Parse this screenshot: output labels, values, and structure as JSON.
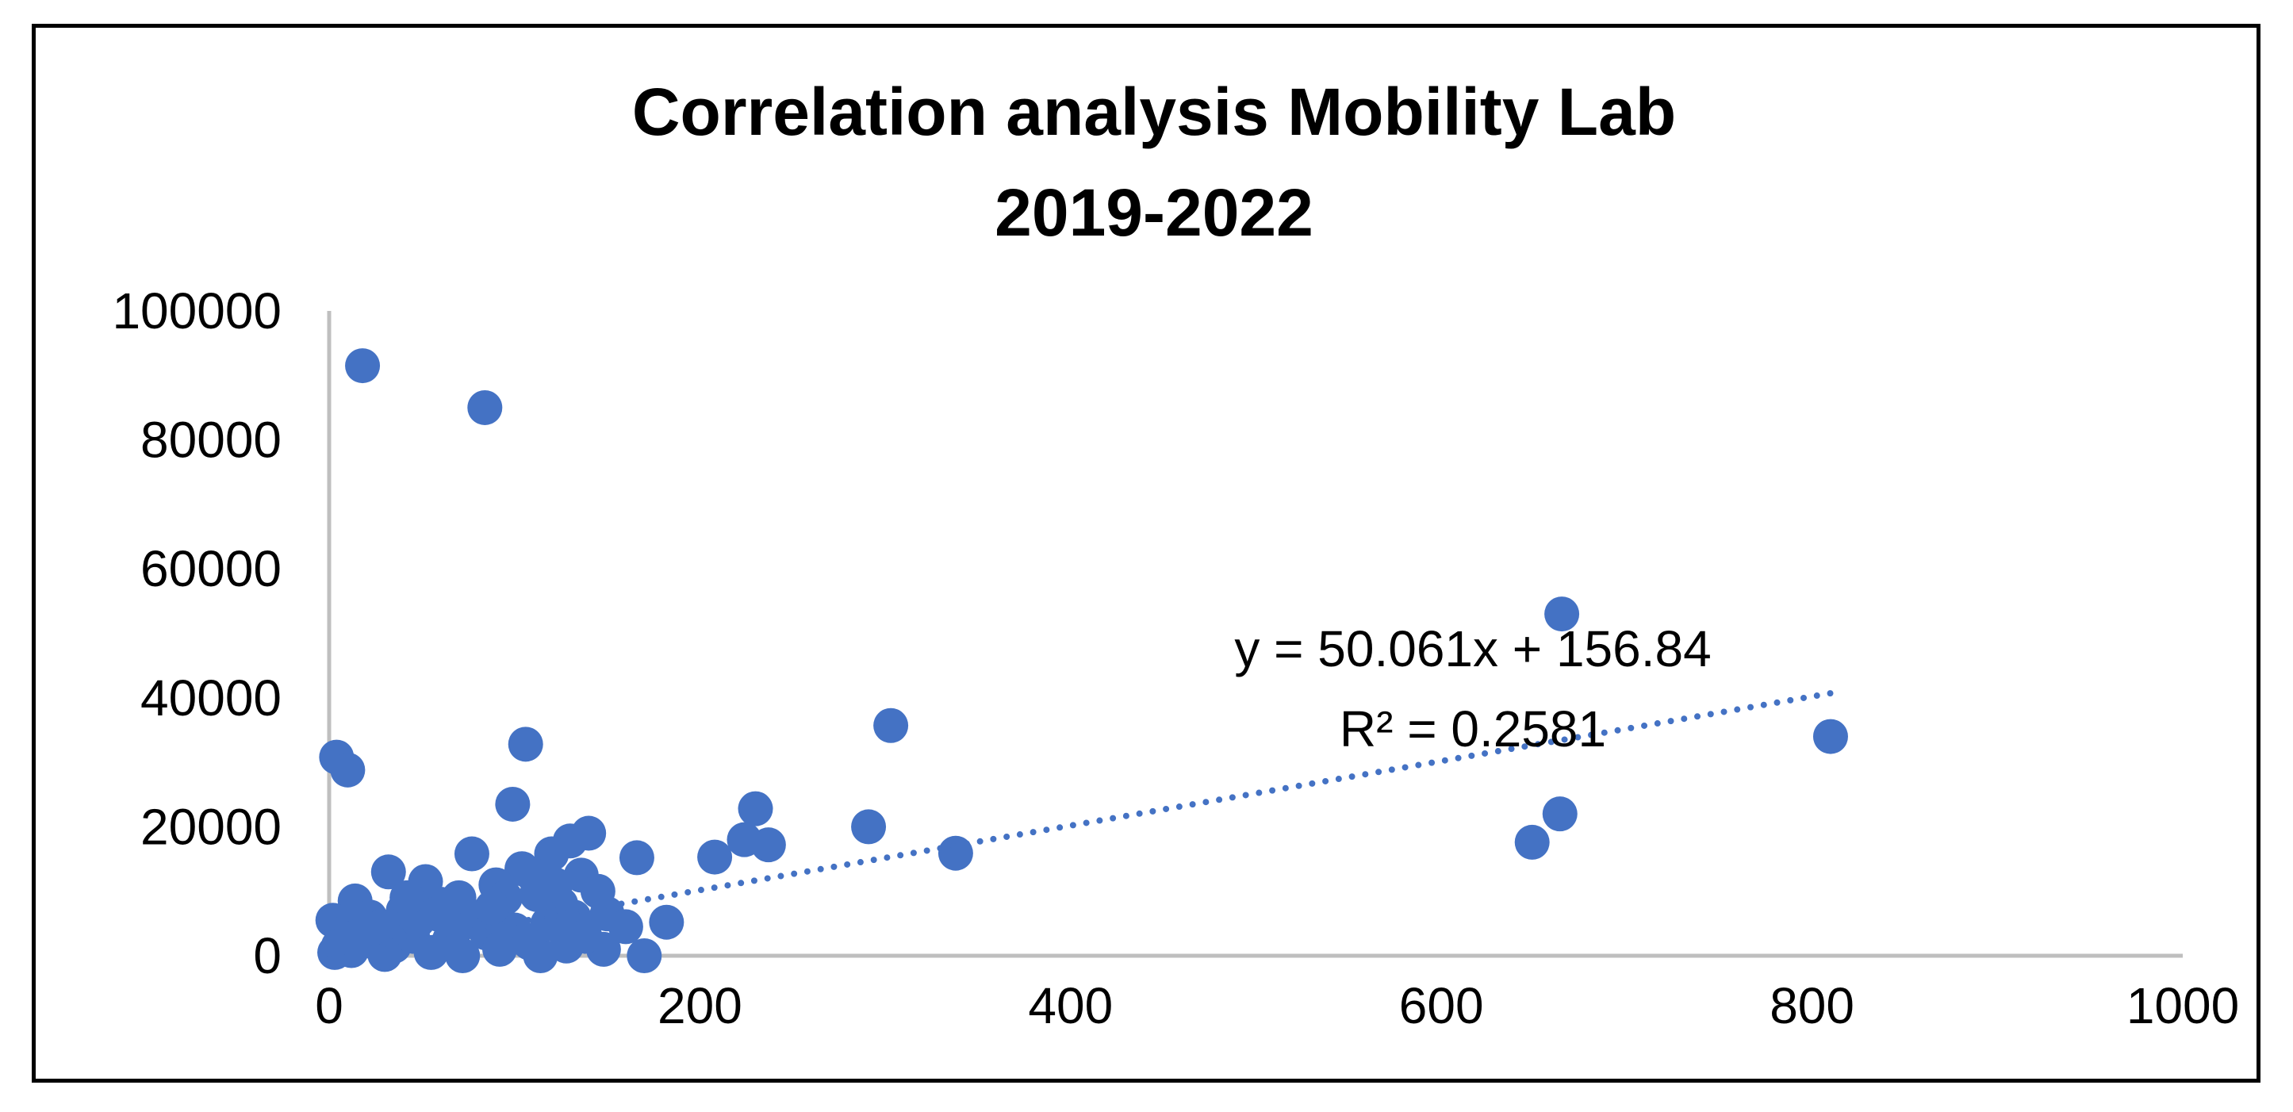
{
  "chart_data": {
    "type": "scatter",
    "title": "Correlation  analysis Mobility Lab",
    "subtitle": "2019-2022",
    "xlabel": "",
    "ylabel": "",
    "xlim": [
      0,
      1000
    ],
    "ylim": [
      0,
      100000
    ],
    "x_ticks": [
      "0",
      "200",
      "400",
      "600",
      "800",
      "1000"
    ],
    "y_ticks": [
      "0",
      "20000",
      "40000",
      "60000",
      "80000",
      "100000"
    ],
    "grid": false,
    "legend": "none",
    "marker_color": "#4472C4",
    "trendline": {
      "type": "linear",
      "slope": 50.061,
      "intercept": 156.84,
      "x_range": [
        0,
        810
      ],
      "equation_label": "y = 50.061x + 156.84",
      "r2_label": "R² = 0.2581"
    },
    "points": [
      [
        18,
        91500
      ],
      [
        84,
        85000
      ],
      [
        665,
        53000
      ],
      [
        303,
        35700
      ],
      [
        4,
        30800
      ],
      [
        10,
        28800
      ],
      [
        106,
        32800
      ],
      [
        810,
        34000
      ],
      [
        99,
        23500
      ],
      [
        230,
        22800
      ],
      [
        664,
        22000
      ],
      [
        291,
        20000
      ],
      [
        649,
        17600
      ],
      [
        237,
        17200
      ],
      [
        224,
        18000
      ],
      [
        338,
        15900
      ],
      [
        208,
        15300
      ],
      [
        166,
        15200
      ],
      [
        140,
        19000
      ],
      [
        130,
        17800
      ],
      [
        120,
        15800
      ],
      [
        77,
        15800
      ],
      [
        32,
        13000
      ],
      [
        52,
        11500
      ],
      [
        14,
        8500
      ],
      [
        110,
        12500
      ],
      [
        104,
        13500
      ],
      [
        136,
        12500
      ],
      [
        145,
        10000
      ],
      [
        90,
        11000
      ],
      [
        70,
        9000
      ],
      [
        182,
        5200
      ],
      [
        170,
        0
      ],
      [
        148,
        1000
      ],
      [
        114,
        0
      ],
      [
        2,
        5500
      ],
      [
        8,
        3500
      ],
      [
        22,
        6000
      ],
      [
        40,
        7000
      ],
      [
        60,
        8000
      ],
      [
        80,
        6000
      ],
      [
        95,
        9000
      ],
      [
        100,
        4000
      ],
      [
        125,
        8000
      ],
      [
        150,
        6500
      ],
      [
        160,
        4500
      ],
      [
        5,
        1500
      ],
      [
        12,
        800
      ],
      [
        25,
        2000
      ],
      [
        35,
        1500
      ],
      [
        45,
        3000
      ],
      [
        55,
        500
      ],
      [
        65,
        2500
      ],
      [
        72,
        0
      ],
      [
        85,
        3500
      ],
      [
        92,
        1000
      ],
      [
        108,
        2000
      ],
      [
        118,
        5000
      ],
      [
        128,
        1500
      ],
      [
        132,
        6000
      ],
      [
        3,
        500
      ],
      [
        15,
        3000
      ],
      [
        28,
        4500
      ],
      [
        48,
        5500
      ],
      [
        58,
        6500
      ],
      [
        68,
        4000
      ],
      [
        88,
        7500
      ],
      [
        112,
        9500
      ],
      [
        122,
        11000
      ],
      [
        138,
        3000
      ],
      [
        42,
        9000
      ],
      [
        30,
        200
      ]
    ]
  }
}
